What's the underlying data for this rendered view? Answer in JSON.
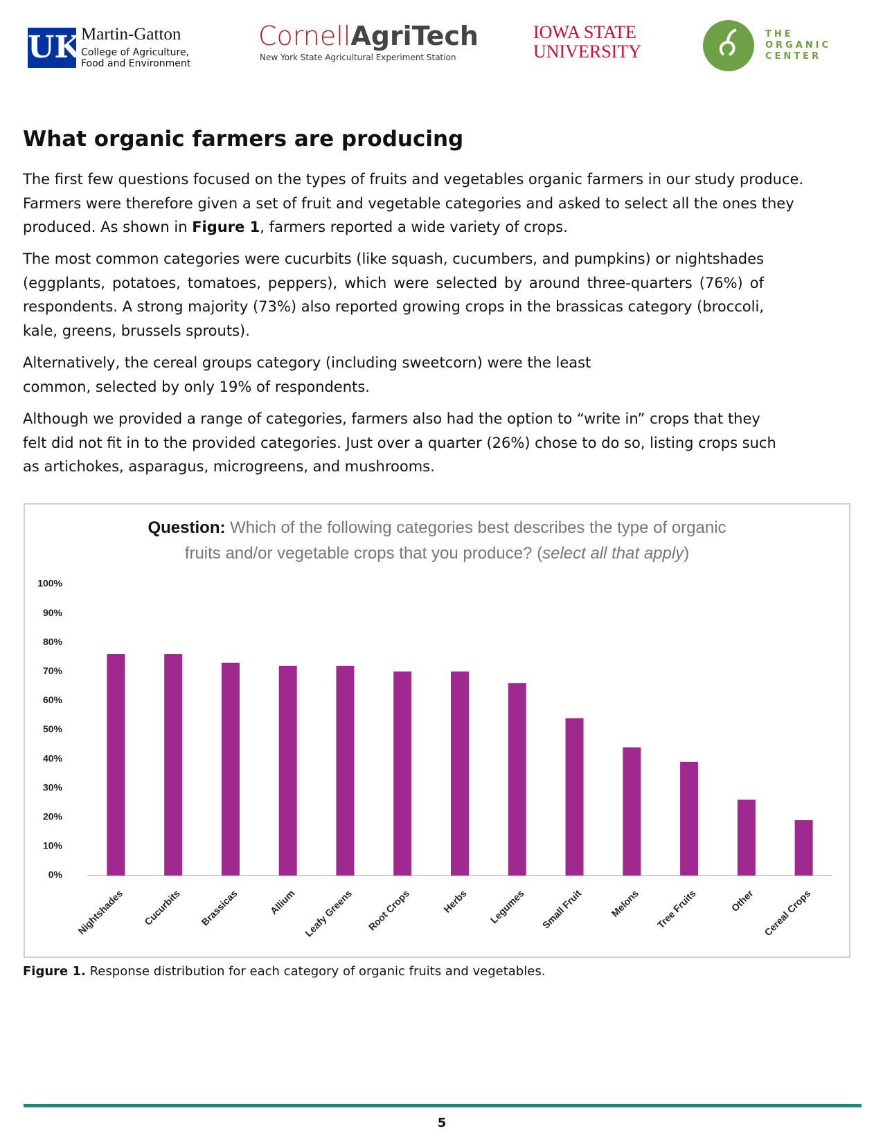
{
  "header": {
    "uk_mark": "UK",
    "uk_name": "Martin-Gatton",
    "uk_college_line1": "College of Agriculture,",
    "uk_college_line2": "Food and Environment",
    "cornell_part1": "Cornell",
    "cornell_part2": "AgriTech",
    "cornell_sub": "New York State Agricultural Experiment Station",
    "iowa_line1": "Iowa State",
    "iowa_line2": "University",
    "organic_line1": "THE",
    "organic_line2": "ORGANIC",
    "organic_line3": "CENTER"
  },
  "heading": "What organic farmers are producing",
  "paragraphs": [
    [
      "The first few questions focused on the types of fruits and vegetables organic farmers in our study produce. Farmers were therefore given a set of fruit and vegetable categories and asked to select all the ones they produced. As shown in ",
      "Figure 1",
      ", farmers reported a wide variety of crops."
    ],
    [
      "The most common categories were cucurbits (like squash, cucumbers, and pumpkins) or nightshades (eggplants, potatoes, tomatoes, peppers), which were selected by around three-quarters (76%) of respondents. A strong majority (73%) also reported growing crops in the brassicas category (broccoli, kale, greens, brussels sprouts)."
    ],
    [
      "Alternatively, the cereal groups category (including sweetcorn) were the least common, selected by only 19% of respondents."
    ],
    [
      "Although we provided a range of categories, farmers also had the option to “write in” crops that they felt did not fit in to the provided categories. Just over a quarter (26%) chose to do so, listing crops such as artichokes, asparagus, microgreens, and mushrooms."
    ]
  ],
  "chart_data": {
    "type": "bar",
    "title_label": "Question:",
    "title_line1": "Which of the following categories best describes the type of organic",
    "title_line2": "fruits and/or vegetable crops that you produce? (",
    "title_italic": "select all that apply",
    "title_end": ")",
    "categories": [
      "Nightshades",
      "Cucurbits",
      "Brassicas",
      "Allium",
      "Leafy Greens",
      "Root Crops",
      "Herbs",
      "Legumes",
      "Small Fruit",
      "Melons",
      "Tree Fruits",
      "Other",
      "Cereal Crops"
    ],
    "values": [
      76,
      76,
      73,
      72,
      72,
      70,
      70,
      66,
      54,
      44,
      39,
      26,
      19
    ],
    "color": "#a0298f",
    "ylim": [
      0,
      100
    ],
    "yticks": [
      {
        "value": 0,
        "label": "0%"
      },
      {
        "value": 10,
        "label": "10%"
      },
      {
        "value": 20,
        "label": "20%"
      },
      {
        "value": 30,
        "label": "30%"
      },
      {
        "value": 40,
        "label": "40%"
      },
      {
        "value": 50,
        "label": "50%"
      },
      {
        "value": 60,
        "label": "60%"
      },
      {
        "value": 70,
        "label": "70%"
      },
      {
        "value": 80,
        "label": "80%"
      },
      {
        "value": 90,
        "label": "90%"
      },
      {
        "value": 100,
        "label": "100%"
      }
    ],
    "grid": false
  },
  "caption": [
    "Figure 1.",
    " Response distribution for each category of organic fruits and vegetables."
  ],
  "page_number": "5"
}
